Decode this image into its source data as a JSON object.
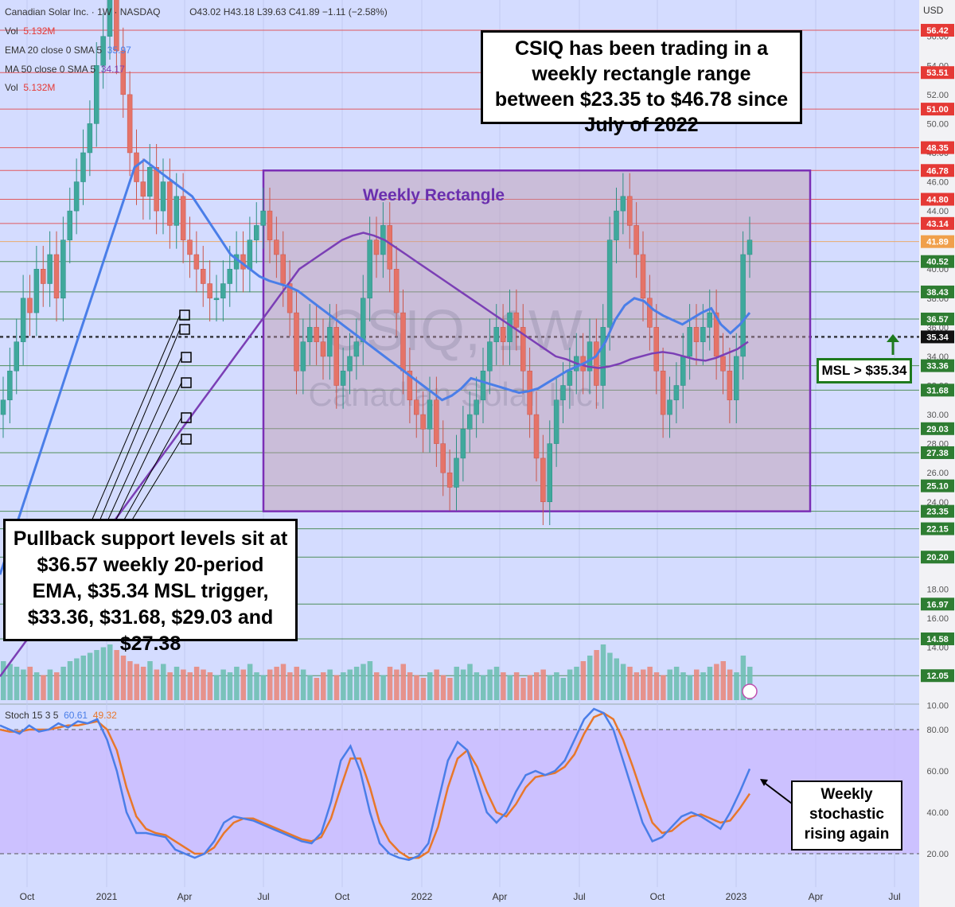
{
  "header": {
    "symbol": "Canadian Solar Inc. · 1W · NASDAQ",
    "ohlc": "O43.02 H43.18 L39.63 C41.89 −1.11 (−2.58%)",
    "vol_label": "Vol",
    "vol_value": "5.132M",
    "ema_label": "EMA 20 close 0 SMA 5",
    "ema_value": "35.97",
    "ma_label": "MA 50 close 0 SMA 5",
    "ma_value": "34.17",
    "vol2_label": "Vol",
    "vol2_value": "5.132M",
    "currency": "USD"
  },
  "callouts": {
    "top": "CSIQ has been trading in a weekly rectangle range between $23.35 to $46.78 since July of 2022",
    "pullback": "Pullback support levels sit at $36.57 weekly 20-period EMA, $35.34 MSL trigger, $33.36, $31.68, $29.03 and $27.38",
    "msl": "MSL > $35.34",
    "stoch": "Weekly stochastic rising again",
    "rectangle": "Weekly Rectangle",
    "watermark1": "CSIQ, 1W",
    "watermark2": "Canadian Solar Inc."
  },
  "stoch_header": {
    "label": "Stoch 15 3 5",
    "k": "60.61",
    "d": "49.32"
  },
  "chart_data": {
    "type": "candlestick",
    "price_axis_ticks": [
      "56.00",
      "54.00",
      "52.00",
      "50.00",
      "48.00",
      "46.00",
      "44.00",
      "42.00",
      "40.00",
      "38.00",
      "36.00",
      "34.00",
      "32.00",
      "30.00",
      "28.00",
      "26.00",
      "24.00",
      "22.00",
      "20.00",
      "18.00",
      "16.00",
      "14.00",
      "12.00",
      "10.00"
    ],
    "levels": [
      {
        "value": 56.42,
        "label": "56.42",
        "color": "#e53935"
      },
      {
        "value": 53.51,
        "label": "53.51",
        "color": "#e53935"
      },
      {
        "value": 51.0,
        "label": "51.00",
        "color": "#e53935"
      },
      {
        "value": 48.35,
        "label": "48.35",
        "color": "#e53935"
      },
      {
        "value": 46.78,
        "label": "46.78",
        "color": "#e53935"
      },
      {
        "value": 44.8,
        "label": "44.80",
        "color": "#e53935"
      },
      {
        "value": 43.14,
        "label": "43.14",
        "color": "#e53935"
      },
      {
        "value": 41.89,
        "label": "41.89",
        "color": "#f0a04b"
      },
      {
        "value": 40.52,
        "label": "40.52",
        "color": "#2e7d32"
      },
      {
        "value": 38.43,
        "label": "38.43",
        "color": "#2e7d32"
      },
      {
        "value": 36.57,
        "label": "36.57",
        "color": "#2e7d32"
      },
      {
        "value": 35.34,
        "label": "35.34",
        "color": "#111111"
      },
      {
        "value": 33.36,
        "label": "33.36",
        "color": "#2e7d32"
      },
      {
        "value": 31.68,
        "label": "31.68",
        "color": "#2e7d32"
      },
      {
        "value": 29.03,
        "label": "29.03",
        "color": "#2e7d32"
      },
      {
        "value": 27.38,
        "label": "27.38",
        "color": "#2e7d32"
      },
      {
        "value": 25.1,
        "label": "25.10",
        "color": "#2e7d32"
      },
      {
        "value": 23.35,
        "label": "23.35",
        "color": "#2e7d32"
      },
      {
        "value": 22.15,
        "label": "22.15",
        "color": "#2e7d32"
      },
      {
        "value": 20.2,
        "label": "20.20",
        "color": "#2e7d32"
      },
      {
        "value": 16.97,
        "label": "16.97",
        "color": "#2e7d32"
      },
      {
        "value": 14.58,
        "label": "14.58",
        "color": "#2e7d32"
      },
      {
        "value": 12.05,
        "label": "12.05",
        "color": "#2e7d32"
      }
    ],
    "x_labels": [
      "Oct",
      "2021",
      "Apr",
      "Jul",
      "Oct",
      "2022",
      "Apr",
      "Jul",
      "Oct",
      "2023",
      "Apr",
      "Jul"
    ],
    "rectangle": {
      "low": 23.35,
      "high": 46.78,
      "start": "Jul 2022"
    },
    "candles_close": [
      31,
      33,
      35,
      38,
      37,
      40,
      39,
      41,
      38,
      42,
      44,
      46,
      48,
      50,
      54,
      56,
      60,
      55,
      52,
      48,
      46,
      45,
      47,
      44,
      46,
      43,
      45,
      42,
      41,
      40,
      39,
      38,
      38,
      39,
      40,
      41,
      40,
      42,
      43,
      44,
      42,
      41,
      39,
      37,
      33,
      35,
      36,
      35,
      34,
      36,
      32,
      33,
      34,
      35,
      38,
      42,
      41,
      43,
      40,
      37,
      33,
      31,
      30,
      29,
      31,
      28,
      26,
      25,
      27,
      29,
      30,
      31,
      33,
      35,
      36,
      35,
      37,
      36,
      33,
      30,
      27,
      24,
      28,
      31,
      32,
      33,
      34,
      33,
      35,
      32,
      36,
      42,
      44,
      45,
      43,
      41,
      38,
      36,
      33,
      30,
      31,
      32,
      34,
      36,
      35,
      36,
      37,
      34,
      33,
      31,
      34,
      41,
      42
    ],
    "ema20": [
      19,
      21,
      23,
      25,
      27,
      29,
      31,
      33,
      35,
      37,
      39,
      41,
      43,
      45,
      47,
      47.5,
      47,
      46.5,
      46,
      45.5,
      45,
      44,
      43,
      42,
      41,
      40.5,
      40,
      39.5,
      39.2,
      39,
      38.8,
      38.5,
      38,
      37.5,
      37,
      36.5,
      36,
      35.5,
      35,
      34.5,
      34,
      33.5,
      33,
      32.5,
      32,
      31.5,
      31,
      31.3,
      31.8,
      32.5,
      32.3,
      32.1,
      31.9,
      31.7,
      31.5,
      31.6,
      31.8,
      32.2,
      32.6,
      33,
      33.3,
      33.6,
      34,
      35,
      36.5,
      37.5,
      38,
      37.8,
      37.2,
      36.8,
      36.5,
      36.2,
      36.6,
      37,
      37.3,
      36.2,
      35.6,
      36.2,
      37
    ],
    "ma50": [
      12,
      13,
      14,
      15,
      16,
      17,
      18,
      19,
      20,
      21,
      22,
      23,
      24,
      25,
      26,
      27,
      28,
      29,
      30,
      31,
      32,
      33,
      34,
      35,
      36,
      37,
      38,
      39,
      40,
      40.5,
      41,
      41.5,
      42,
      42.3,
      42.5,
      42.3,
      42,
      41.5,
      41,
      40.5,
      40,
      39.5,
      39,
      38.5,
      38,
      37.5,
      37,
      36.5,
      36,
      35.5,
      35,
      34.5,
      34,
      33.8,
      33.5,
      33.3,
      33.2,
      33.3,
      33.5,
      33.8,
      34,
      34.2,
      34.3,
      34.2,
      34,
      33.8,
      33.7,
      33.9,
      34.2,
      34.5,
      35
    ],
    "volume": [
      14,
      13,
      12,
      11,
      12,
      10,
      9,
      11,
      10,
      12,
      14,
      15,
      16,
      17,
      18,
      19,
      20,
      18,
      16,
      14,
      13,
      12,
      14,
      11,
      13,
      10,
      12,
      11,
      10,
      12,
      11,
      10,
      9,
      11,
      10,
      12,
      11,
      13,
      10,
      9,
      11,
      12,
      13,
      10,
      12,
      11,
      9,
      8,
      10,
      11,
      9,
      10,
      11,
      12,
      13,
      14,
      10,
      9,
      12,
      11,
      13,
      10,
      9,
      8,
      10,
      11,
      9,
      8,
      12,
      11,
      13,
      10,
      9,
      11,
      12,
      10,
      9,
      10,
      8,
      9,
      10,
      11,
      9,
      10,
      8,
      11,
      12,
      14,
      16,
      18,
      20,
      17,
      15,
      13,
      12,
      10,
      11,
      12,
      10,
      9,
      11,
      12,
      10,
      9,
      11,
      10,
      12,
      13,
      14,
      11,
      10,
      16,
      12
    ],
    "stoch_k": [
      82,
      80,
      78,
      82,
      79,
      80,
      83,
      81,
      84,
      83,
      85,
      75,
      60,
      40,
      30,
      30,
      29,
      28,
      22,
      20,
      18,
      20,
      26,
      35,
      38,
      37,
      36,
      34,
      32,
      30,
      28,
      26,
      25,
      30,
      45,
      65,
      72,
      60,
      40,
      25,
      20,
      18,
      17,
      19,
      25,
      45,
      65,
      74,
      70,
      55,
      40,
      35,
      40,
      50,
      58,
      60,
      58,
      60,
      65,
      75,
      85,
      90,
      88,
      80,
      65,
      50,
      35,
      26,
      28,
      33,
      38,
      40,
      38,
      35,
      32,
      40,
      50,
      61
    ],
    "stoch_d": [
      80,
      79,
      79,
      80,
      80,
      80,
      81,
      82,
      82,
      83,
      84,
      80,
      70,
      52,
      38,
      32,
      30,
      29,
      26,
      23,
      20,
      20,
      23,
      30,
      35,
      37,
      37,
      35,
      33,
      31,
      29,
      27,
      26,
      28,
      37,
      52,
      66,
      66,
      52,
      35,
      26,
      21,
      18,
      18,
      21,
      33,
      52,
      66,
      70,
      62,
      50,
      40,
      38,
      44,
      52,
      57,
      58,
      59,
      62,
      68,
      78,
      86,
      88,
      85,
      75,
      62,
      48,
      35,
      30,
      31,
      35,
      38,
      39,
      37,
      35,
      36,
      42,
      49
    ],
    "stoch_bands": [
      20,
      80
    ]
  },
  "colors": {
    "up": "#3fa89c",
    "down": "#e57368",
    "ema": "#4a7ee8",
    "ma": "#7b3fb5",
    "rect_border": "#7b2fb5",
    "band": "#c9b8ff",
    "stoch_k": "#4a7ee8",
    "stoch_d": "#e8772a"
  }
}
